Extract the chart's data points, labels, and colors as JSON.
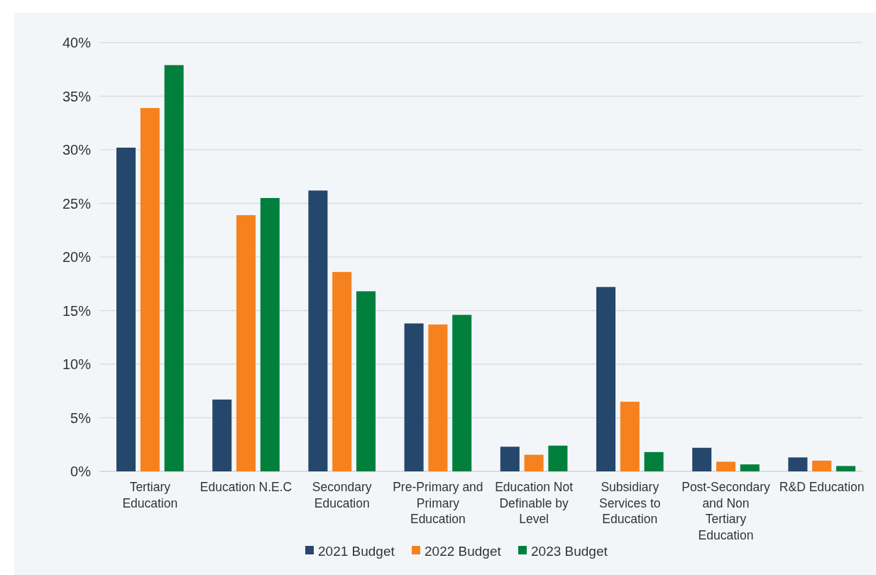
{
  "chart_data": {
    "type": "bar",
    "categories": [
      "Tertiary Education",
      "Education N.E.C",
      "Secondary Education",
      "Pre-Primary and Primary Education",
      "Education Not Definable by Level",
      "Subsidiary Services to Education",
      "Post-Secondary and Non Tertiary Education",
      "R&D Education"
    ],
    "series": [
      {
        "name": "2021 Budget",
        "color": "#25476b",
        "values": [
          30.2,
          6.7,
          26.2,
          13.8,
          2.3,
          17.2,
          2.2,
          1.3
        ]
      },
      {
        "name": "2022 Budget",
        "color": "#f5821f",
        "values": [
          33.9,
          23.9,
          18.6,
          13.7,
          1.55,
          6.5,
          0.9,
          1.0
        ]
      },
      {
        "name": "2023 Budget",
        "color": "#007f3d",
        "values": [
          37.9,
          25.5,
          16.8,
          14.6,
          2.4,
          1.8,
          0.65,
          0.5
        ]
      }
    ],
    "ylim": [
      0,
      40
    ],
    "yticks": [
      {
        "value": 0,
        "label": "0%"
      },
      {
        "value": 5,
        "label": "5%"
      },
      {
        "value": 10,
        "label": "10%"
      },
      {
        "value": 15,
        "label": "15%"
      },
      {
        "value": 20,
        "label": "20%"
      },
      {
        "value": 25,
        "label": "25%"
      },
      {
        "value": 30,
        "label": "30%"
      },
      {
        "value": 35,
        "label": "35%"
      },
      {
        "value": 40,
        "label": "40%"
      }
    ],
    "grid": "y",
    "legend": "bottom"
  }
}
